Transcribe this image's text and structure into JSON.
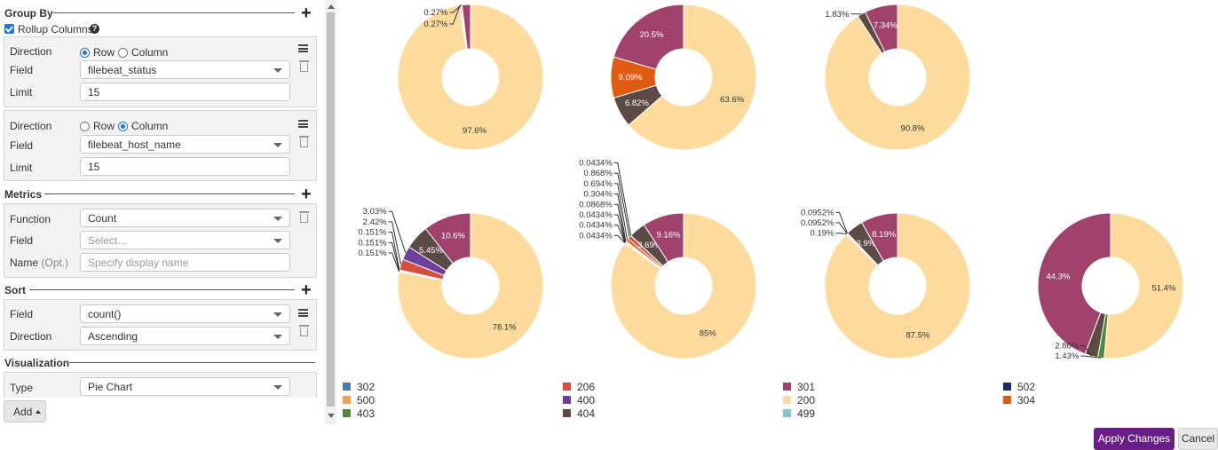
{
  "group_by": {
    "title": "Group By",
    "rollup_label": "Rollup Columns",
    "rollup_checked": true,
    "groups": [
      {
        "direction_label": "Direction",
        "row_label": "Row",
        "column_label": "Column",
        "selected": "Row",
        "field_label": "Field",
        "field_value": "filebeat_status",
        "limit_label": "Limit",
        "limit_value": "15"
      },
      {
        "direction_label": "Direction",
        "row_label": "Row",
        "column_label": "Column",
        "selected": "Column",
        "field_label": "Field",
        "field_value": "filebeat_host_name",
        "limit_label": "Limit",
        "limit_value": "15"
      }
    ]
  },
  "metrics": {
    "title": "Metrics",
    "function_label": "Function",
    "function_value": "Count",
    "field_label": "Field",
    "field_placeholder": "Select...",
    "name_label": "Name",
    "name_opt": "(Opt.)",
    "name_placeholder": "Specify display name"
  },
  "sort": {
    "title": "Sort",
    "field_label": "Field",
    "field_value": "count()",
    "direction_label": "Direction",
    "direction_value": "Ascending"
  },
  "visualization": {
    "title": "Visualization",
    "type_label": "Type",
    "type_value": "Pie Chart"
  },
  "add_button": "Add",
  "apply_button": "Apply Changes",
  "cancel_button": "Cancel",
  "colors": {
    "200": "#fddb9d",
    "301": "#a0426b",
    "302": "#4a7ab5",
    "206": "#d64f3e",
    "502": "#1e2a6e",
    "500": "#f5a04a",
    "400": "#6f3fa0",
    "304": "#e05b10",
    "403": "#4f8a3a",
    "404": "#5c4a45",
    "499": "#86c5cf"
  },
  "chart_data": {
    "type": "pie",
    "legend": [
      {
        "code": "302"
      },
      {
        "code": "206"
      },
      {
        "code": "301"
      },
      {
        "code": "502"
      },
      {
        "code": "500"
      },
      {
        "code": "400"
      },
      {
        "code": "200"
      },
      {
        "code": "304"
      },
      {
        "code": "403"
      },
      {
        "code": "404"
      },
      {
        "code": "499"
      }
    ],
    "pies": [
      {
        "slices": [
          {
            "code": "200",
            "pct": 97.6,
            "label": "97.6%"
          },
          {
            "code": "404",
            "pct": 0.27,
            "label": "0.27%"
          },
          {
            "code": "206",
            "pct": 0.27,
            "label": "0.27%"
          },
          {
            "code": "301",
            "pct": 1.86,
            "label": ""
          }
        ]
      },
      {
        "slices": [
          {
            "code": "200",
            "pct": 63.6,
            "label": "63.6%"
          },
          {
            "code": "404",
            "pct": 6.82,
            "label": "6.82%"
          },
          {
            "code": "304",
            "pct": 9.09,
            "label": "9.09%"
          },
          {
            "code": "301",
            "pct": 20.5,
            "label": "20.5%"
          }
        ]
      },
      {
        "slices": [
          {
            "code": "200",
            "pct": 90.8,
            "label": "90.8%"
          },
          {
            "code": "404",
            "pct": 1.83,
            "label": "1.83%"
          },
          {
            "code": "301",
            "pct": 7.34,
            "label": "7.34%"
          }
        ]
      },
      {
        "slices": [
          {
            "code": "200",
            "pct": 78.1,
            "label": "78.1%"
          },
          {
            "code": "499",
            "pct": 0.151,
            "label": "0.151%"
          },
          {
            "code": "403",
            "pct": 0.151,
            "label": "0.151%"
          },
          {
            "code": "302",
            "pct": 0.151,
            "label": "0.151%"
          },
          {
            "code": "206",
            "pct": 2.42,
            "label": "2.42%"
          },
          {
            "code": "400",
            "pct": 3.03,
            "label": "3.03%"
          },
          {
            "code": "404",
            "pct": 5.45,
            "label": "5.45%"
          },
          {
            "code": "301",
            "pct": 10.6,
            "label": "10.6%"
          }
        ]
      },
      {
        "slices": [
          {
            "code": "200",
            "pct": 85,
            "label": "85%"
          },
          {
            "code": "499",
            "pct": 0.0434,
            "label": "0.0434%"
          },
          {
            "code": "403",
            "pct": 0.0434,
            "label": "0.0434%"
          },
          {
            "code": "500",
            "pct": 0.0434,
            "label": "0.0434%"
          },
          {
            "code": "502",
            "pct": 0.0868,
            "label": "0.0868%"
          },
          {
            "code": "302",
            "pct": 0.304,
            "label": "0.304%"
          },
          {
            "code": "304",
            "pct": 0.694,
            "label": "0.694%"
          },
          {
            "code": "206",
            "pct": 0.868,
            "label": "0.868%"
          },
          {
            "code": "400",
            "pct": 0.0434,
            "label": "0.0434%"
          },
          {
            "code": "404",
            "pct": 3.69,
            "label": "3.69%"
          },
          {
            "code": "301",
            "pct": 9.16,
            "label": "9.16%"
          }
        ]
      },
      {
        "slices": [
          {
            "code": "200",
            "pct": 87.5,
            "label": "87.5%"
          },
          {
            "code": "206",
            "pct": 0.19,
            "label": "0.19%"
          },
          {
            "code": "403",
            "pct": 0.0952,
            "label": "0.0952%"
          },
          {
            "code": "302",
            "pct": 0.0952,
            "label": "0.0952%"
          },
          {
            "code": "404",
            "pct": 3.9,
            "label": "3.9%"
          },
          {
            "code": "301",
            "pct": 8.19,
            "label": "8.19%"
          }
        ]
      },
      {
        "slices": [
          {
            "code": "200",
            "pct": 51.4,
            "label": "51.4%"
          },
          {
            "code": "403",
            "pct": 1.43,
            "label": "1.43%"
          },
          {
            "code": "404",
            "pct": 2.86,
            "label": "2.86%"
          },
          {
            "code": "301",
            "pct": 44.3,
            "label": "44.3%"
          }
        ]
      }
    ]
  }
}
